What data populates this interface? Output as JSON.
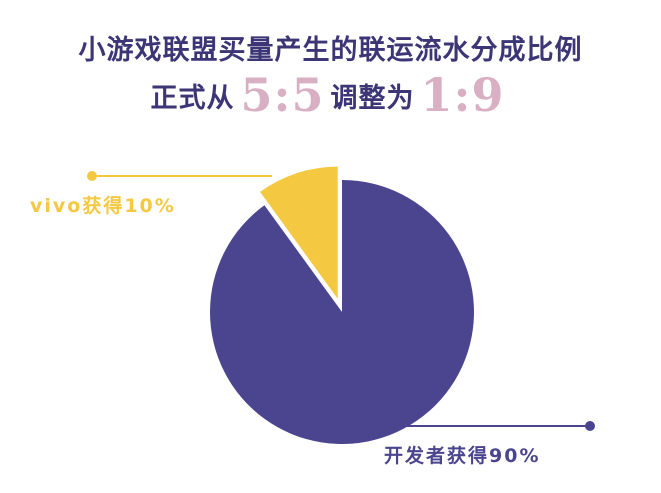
{
  "chart_data": {
    "type": "pie",
    "title": "小游戏联盟买量产生的联运流水分成比例",
    "subtitle": [
      "正式从",
      "5:5",
      "调整为",
      "1:9"
    ],
    "values": [
      10,
      90
    ],
    "value_labels": [
      "vivo获得10%",
      "开发者获得90%"
    ],
    "colors": [
      "#f5c842",
      "#4b4590"
    ],
    "explode": [
      true,
      false
    ]
  }
}
